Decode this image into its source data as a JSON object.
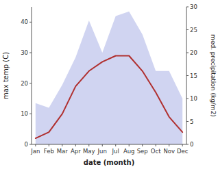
{
  "chart_data": {
    "type": "line",
    "categories": [
      "Jan",
      "Feb",
      "Mar",
      "Apr",
      "May",
      "Jun",
      "Jul",
      "Aug",
      "Sep",
      "Oct",
      "Nov",
      "Dec"
    ],
    "series": [
      {
        "type": "area",
        "axis": "y2",
        "color": "#b0b8e8",
        "values": [
          9,
          8,
          13,
          19,
          27,
          20,
          28,
          29,
          24,
          16,
          16,
          10
        ]
      },
      {
        "type": "line",
        "color": "#b03030",
        "values": [
          2,
          4,
          10,
          19,
          24,
          27,
          29,
          29,
          24,
          17,
          9,
          4
        ]
      }
    ],
    "xlabel": "date (month)",
    "ylabel": "max temp (C)",
    "y2label": "med. precipitation (kg/m2)",
    "ylim": [
      0,
      45
    ],
    "yticks": [
      0,
      10,
      20,
      30,
      40
    ],
    "y2lim": [
      0,
      30
    ],
    "y2ticks": [
      0,
      5,
      10,
      15,
      20,
      25,
      30
    ],
    "grid": false
  }
}
